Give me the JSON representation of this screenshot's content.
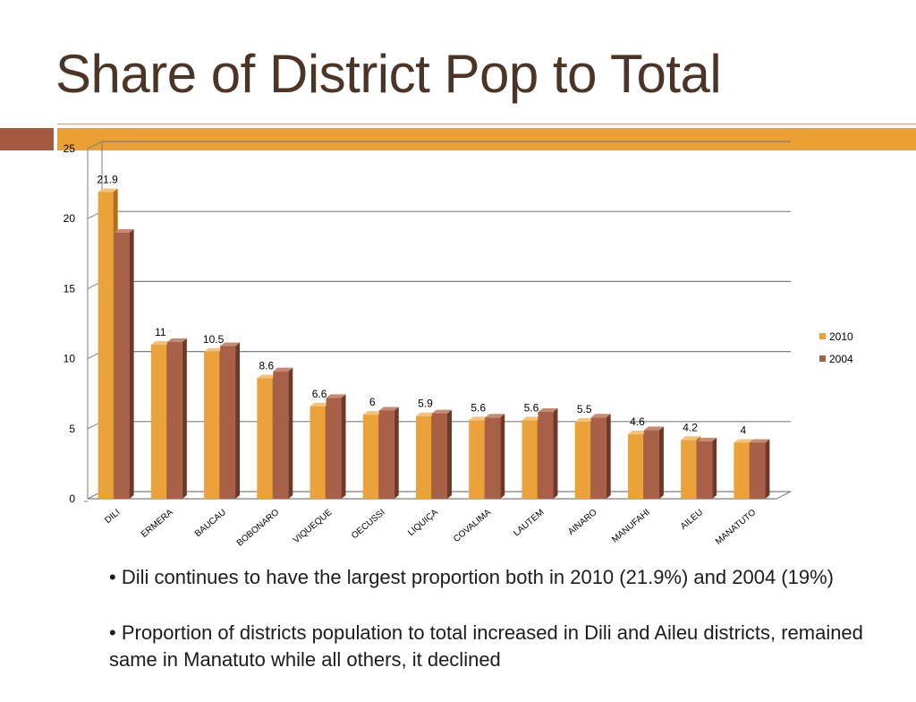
{
  "slide": {
    "title": "Share of District Pop to Total"
  },
  "bullets": [
    "• Dili continues to have the largest proportion both in 2010 (21.9%) and 2004 (19%)",
    "• Proportion of districts population to total increased in Dili and Aileu districts, remained same in Manatuto while all others, it declined"
  ],
  "colors": {
    "accent": "#eba034",
    "accent_dark": "#a55a40",
    "series_2010": "#eca23a",
    "series_2010_side": "#b36e18",
    "series_2004": "#a86048",
    "series_2004_side": "#6e3a27",
    "gridline": "#7f7f7f",
    "title": "#4a3527"
  },
  "chart_data": {
    "type": "bar",
    "title": "",
    "xlabel": "",
    "ylabel": "",
    "ylim": [
      0,
      25
    ],
    "yticks": [
      0,
      5,
      10,
      15,
      20,
      25
    ],
    "grid": true,
    "legend_position": "right",
    "categories": [
      "DILI",
      "ERMERA",
      "BAUCAU",
      "BOBONARO",
      "VIQUEQUE",
      "OECUSSI",
      "LIQUIÇA",
      "COVALIMA",
      "LAUTEM",
      "AINARO",
      "MANUFAHI",
      "AILEU",
      "MANATUTO"
    ],
    "series": [
      {
        "name": "2010",
        "values": [
          21.9,
          11,
          10.5,
          8.6,
          6.6,
          6,
          5.9,
          5.6,
          5.6,
          5.5,
          4.6,
          4.2,
          4
        ],
        "data_labels": [
          "21.9",
          "11",
          "10.5",
          "8.6",
          "6.6",
          "6",
          "5.9",
          "5.6",
          "5.6",
          "5.5",
          "4.6",
          "4.2",
          "4"
        ]
      },
      {
        "name": "2004",
        "values": [
          19,
          11.2,
          10.9,
          9.1,
          7.2,
          6.3,
          6.1,
          5.8,
          6.2,
          5.8,
          4.9,
          4.1,
          4
        ]
      }
    ]
  }
}
